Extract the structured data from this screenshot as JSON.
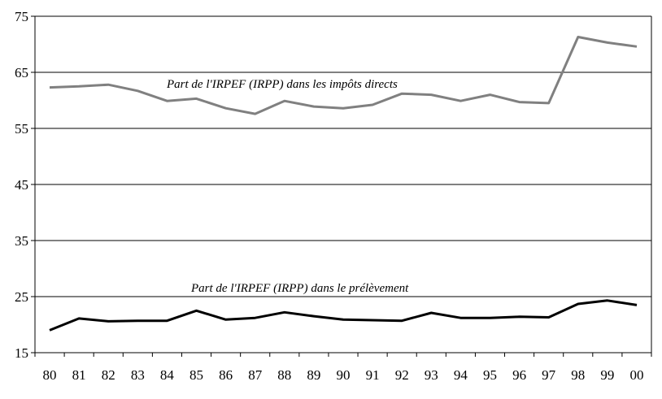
{
  "chart_data": {
    "type": "line",
    "title": "",
    "xlabel": "",
    "ylabel": "",
    "categories": [
      "80",
      "81",
      "82",
      "83",
      "84",
      "85",
      "86",
      "87",
      "88",
      "89",
      "90",
      "91",
      "92",
      "93",
      "94",
      "95",
      "96",
      "97",
      "98",
      "99",
      "00"
    ],
    "ylim": [
      15,
      75
    ],
    "yticks": [
      15,
      25,
      35,
      45,
      55,
      65,
      75
    ],
    "grid": true,
    "series": [
      {
        "name": "Part de l'IRPEF (IRPP) dans les impôts directs",
        "color": "#808080",
        "values": [
          62.3,
          62.5,
          62.8,
          61.7,
          59.9,
          60.3,
          58.6,
          57.6,
          59.9,
          58.9,
          58.6,
          59.2,
          61.2,
          61.0,
          59.9,
          61.0,
          59.7,
          59.5,
          71.3,
          70.3,
          69.6
        ]
      },
      {
        "name": "Part de l'IRPEF (IRPP) dans le prélèvement",
        "color": "#000000",
        "values": [
          19.0,
          21.1,
          20.6,
          20.7,
          20.7,
          22.5,
          20.9,
          21.2,
          22.2,
          21.5,
          20.9,
          20.8,
          20.7,
          22.1,
          21.2,
          21.2,
          21.4,
          21.3,
          23.7,
          24.3,
          23.5
        ]
      }
    ],
    "annotations": [
      {
        "text": "Part de l'IRPEF (IRPP) dans les impôts directs",
        "series": 0
      },
      {
        "text": "Part de l'IRPEF (IRPP) dans le prélèvement",
        "series": 1
      }
    ]
  }
}
